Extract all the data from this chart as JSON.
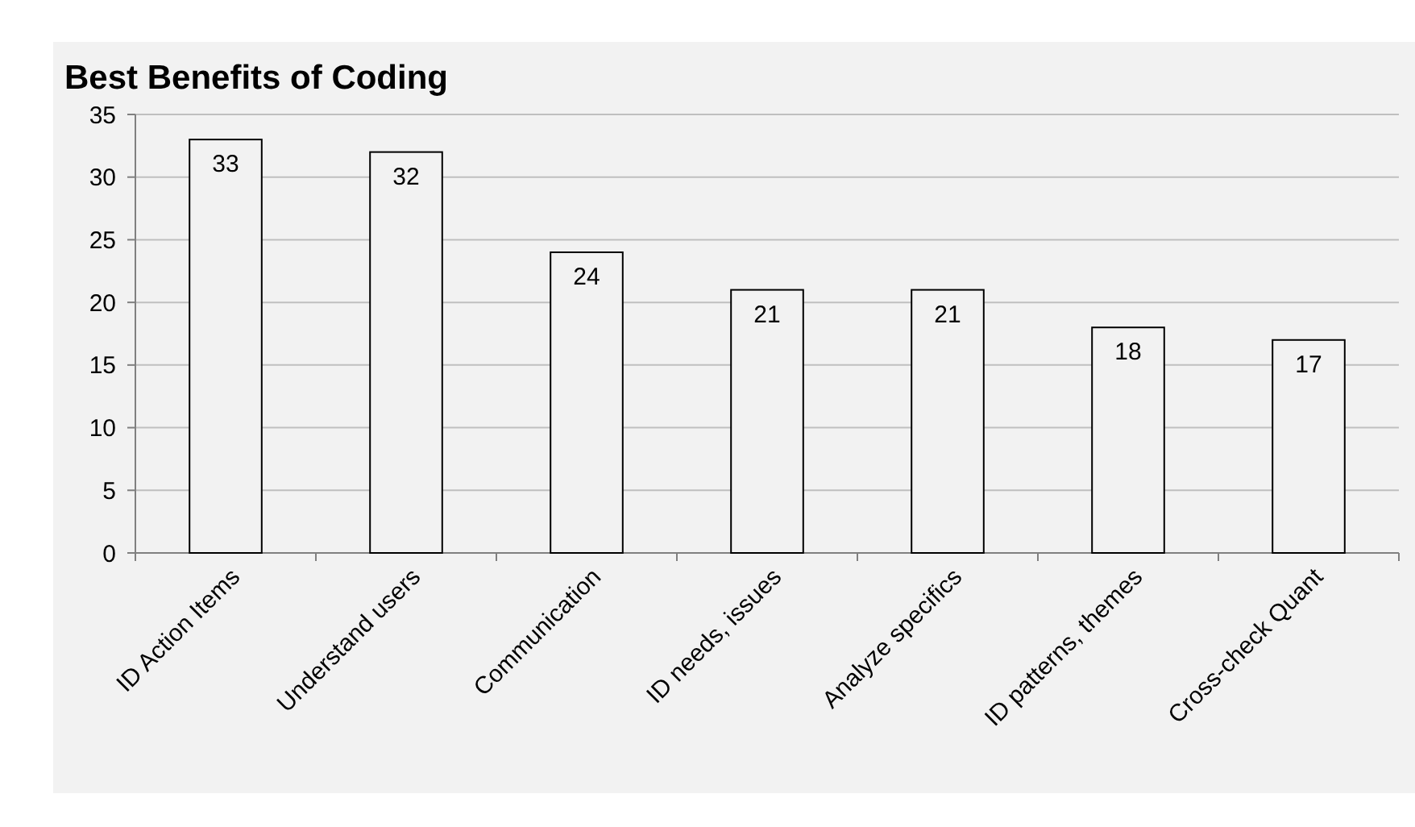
{
  "chart_data": {
    "type": "bar",
    "title": "Best Benefits of Coding",
    "categories": [
      "ID Action Items",
      "Understand users",
      "Communication",
      "ID needs, issues",
      "Analyze specifics",
      "ID patterns, themes",
      "Cross-check Quant"
    ],
    "values": [
      33,
      32,
      24,
      21,
      21,
      18,
      17
    ],
    "color": "#f2f2f2",
    "ylim": [
      0,
      35
    ],
    "yticks": [
      0,
      5,
      10,
      15,
      20,
      25,
      30,
      35
    ],
    "grid": "y",
    "data_labels": true
  }
}
